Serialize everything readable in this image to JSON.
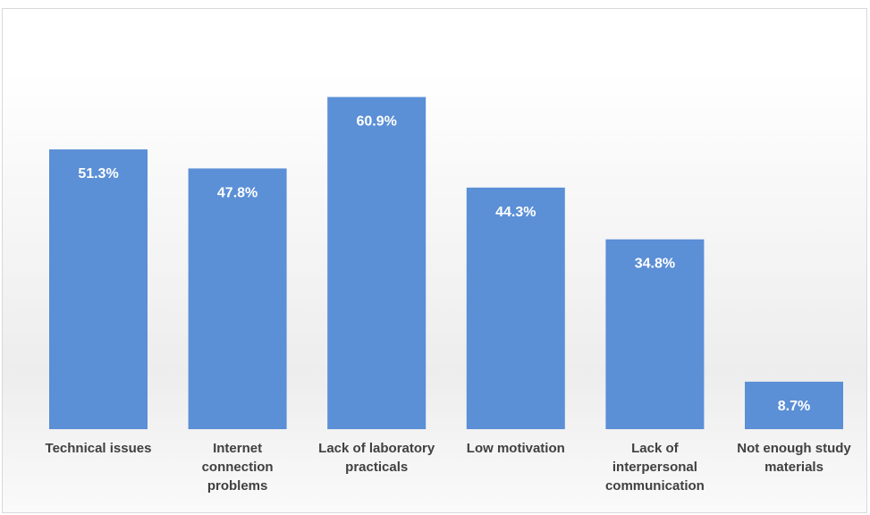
{
  "chart_data": {
    "type": "bar",
    "title": "",
    "xlabel": "",
    "ylabel": "",
    "categories": [
      "Technical issues",
      "Internet connection problems",
      "Lack of laboratory practicals",
      "Low motivation",
      "Lack of interpersonal communication",
      "Not enough study materials"
    ],
    "category_lines": [
      [
        "Technical issues"
      ],
      [
        "Internet",
        "connection",
        "problems"
      ],
      [
        "Lack of laboratory",
        "practicals"
      ],
      [
        "Low motivation"
      ],
      [
        "Lack of",
        "interpersonal",
        "communication"
      ],
      [
        "Not enough study",
        "materials"
      ]
    ],
    "values": [
      51.3,
      47.8,
      60.9,
      44.3,
      34.8,
      8.7
    ],
    "value_labels": [
      "51.3%",
      "47.8%",
      "60.9%",
      "44.3%",
      "34.8%",
      "8.7%"
    ],
    "unit": "%",
    "ylim": [
      0,
      70
    ],
    "grid": false,
    "legend": "none",
    "bar_color": "#5b8fd6",
    "label_color": "#404040",
    "value_label_color": "#ffffff"
  }
}
